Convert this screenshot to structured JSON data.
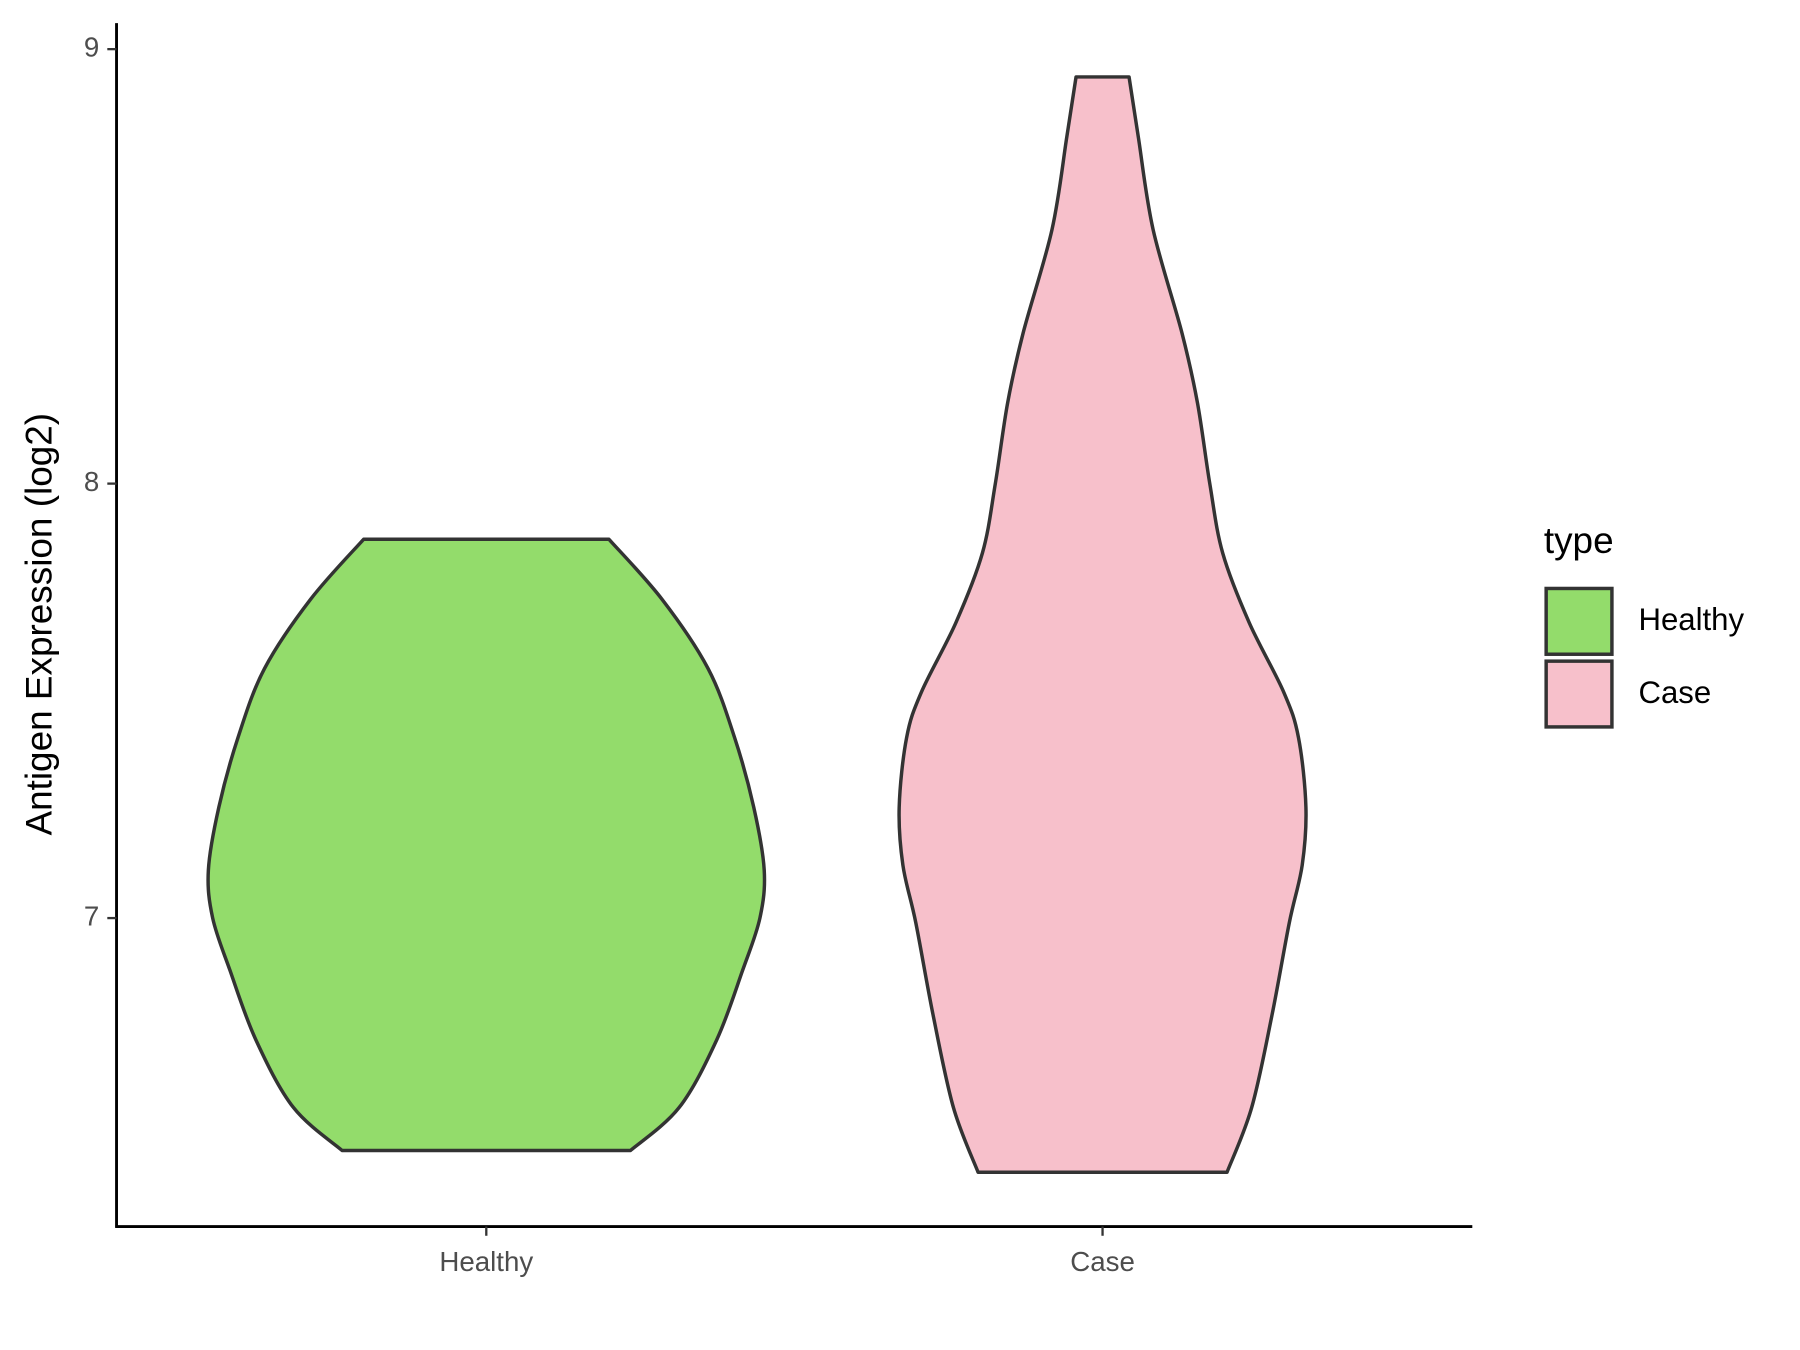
{
  "chart_data": {
    "type": "violin",
    "y_label": "Antigen Expression (log2)",
    "categories": [
      "Healthy",
      "Case"
    ],
    "ylim": [
      6.29,
      9.06
    ],
    "yticks": [
      7,
      8,
      9
    ],
    "legend_title": "type",
    "legend_position": "right",
    "series": [
      {
        "name": "Healthy",
        "color": "#93dc6b",
        "y": [
          6.465,
          6.564,
          6.72,
          6.88,
          7.0,
          7.11,
          7.255,
          7.415,
          7.574,
          7.734,
          7.872
        ],
        "width": [
          0.234,
          0.313,
          0.374,
          0.416,
          0.444,
          0.451,
          0.434,
          0.403,
          0.36,
          0.285,
          0.199
        ]
      },
      {
        "name": "Case",
        "color": "#f7c0cb",
        "y": [
          6.415,
          6.564,
          6.777,
          6.989,
          7.122,
          7.255,
          7.415,
          7.52,
          7.68,
          7.84,
          8.0,
          8.186,
          8.346,
          8.585,
          8.798,
          8.936
        ],
        "width": [
          0.202,
          0.242,
          0.275,
          0.303,
          0.324,
          0.33,
          0.318,
          0.294,
          0.238,
          0.195,
          0.174,
          0.154,
          0.129,
          0.082,
          0.058,
          0.043
        ]
      }
    ]
  }
}
